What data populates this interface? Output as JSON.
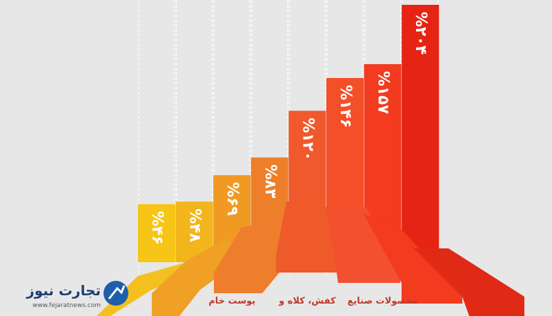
{
  "chart_data": {
    "type": "bar",
    "categories": [
      null,
      null,
      "پوست خام",
      null,
      "کفش، کلاه و",
      null,
      "محصولات صنایع",
      null
    ],
    "values": [
      46,
      48,
      69,
      83,
      120,
      146,
      157,
      204
    ],
    "value_labels": [
      "%۴۶",
      "%۴۸",
      "%۶۹",
      "%۸۳",
      "%۱۲۰",
      "%۱۴۶",
      "%۱۵۷",
      "%۲۰۴"
    ],
    "colors": [
      "#f7c516",
      "#f2b51c",
      "#f09a24",
      "#ee7f2a",
      "#f0592b",
      "#f34f28",
      "#f33b1f",
      "#e52413"
    ]
  },
  "logo": {
    "name": "تجارت نیوز",
    "url": "www.fejaratnews.com"
  }
}
